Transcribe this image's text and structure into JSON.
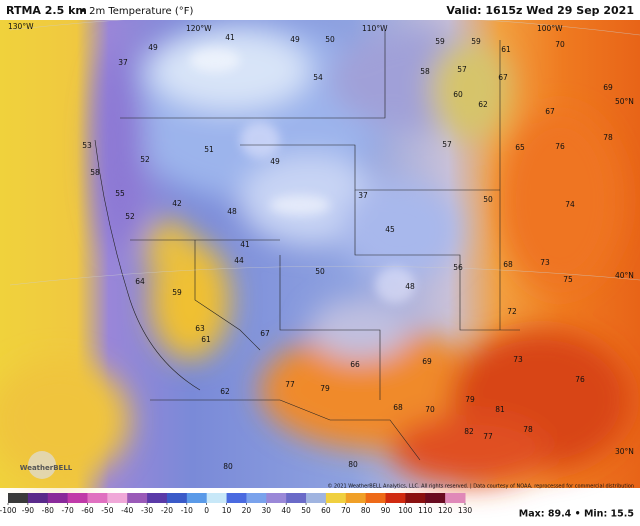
{
  "header": {
    "title": "RTMA 2.5 km",
    "subtitle": "• 2m Temperature (°F)",
    "valid": "Valid: 1615z Wed 29 Sep 2021"
  },
  "map": {
    "graticule": [
      "130°W",
      "120°W",
      "110°W",
      "100°W",
      "50°N",
      "40°N",
      "30°N"
    ],
    "stations": [
      49,
      37,
      41,
      49,
      50,
      59,
      59,
      61,
      70,
      58,
      57,
      67,
      69,
      54,
      60,
      62,
      67,
      78,
      58,
      53,
      52,
      51,
      49,
      57,
      65,
      76,
      55,
      42,
      48,
      37,
      45,
      50,
      74,
      52,
      41,
      44,
      56,
      68,
      73,
      64,
      59,
      50,
      48,
      72,
      75,
      63,
      61,
      67,
      66,
      69,
      73,
      76,
      62,
      77,
      79,
      80,
      68,
      81,
      82,
      78,
      80,
      70,
      79,
      77
    ],
    "logo": "WeatherBELL",
    "credit": "© 2021 WeatherBELL Analytics, LLC. All rights reserved. | Data courtesy of NOAA, reprocessed for commercial distribution"
  },
  "colorbar": {
    "ticks": [
      -100,
      -90,
      -80,
      -70,
      -60,
      -50,
      -40,
      -30,
      -20,
      -10,
      0,
      10,
      20,
      30,
      40,
      50,
      60,
      70,
      80,
      90,
      100,
      110,
      120,
      130
    ]
  },
  "stats": "Max: 89.4 • Min: 15.5"
}
